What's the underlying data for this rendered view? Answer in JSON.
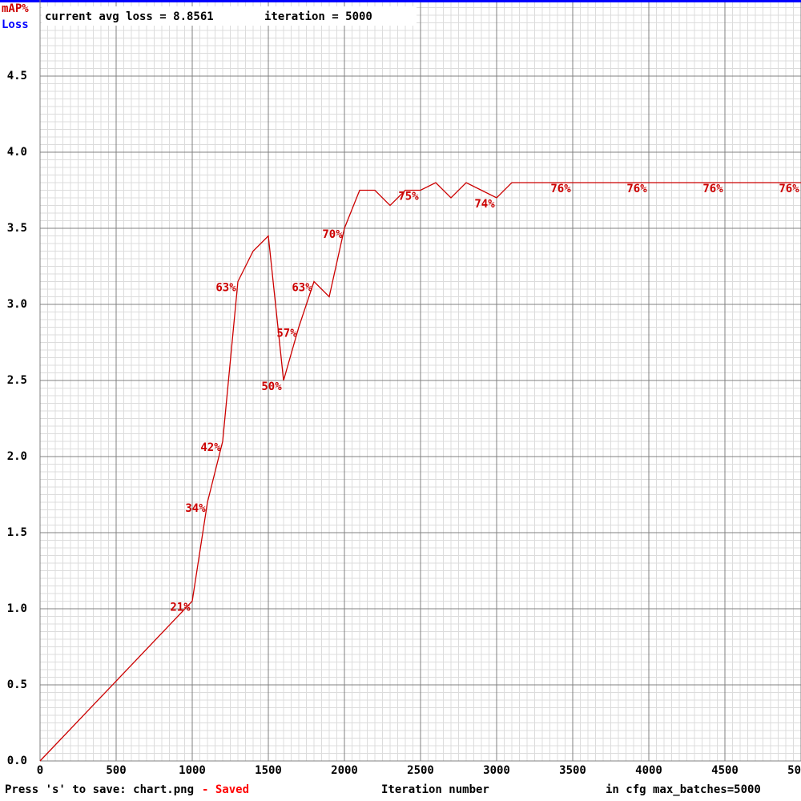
{
  "chart_data": {
    "type": "line",
    "legend": [
      "mAP%",
      "Loss"
    ],
    "status": {
      "loss": "current avg loss = 8.8561",
      "iteration": "iteration = 5000"
    },
    "footer": {
      "save": "Press 's' to save: chart.png",
      "saved": "- Saved",
      "max_batches": "in cfg max_batches=5000"
    },
    "x_label": "Iteration number",
    "xlim": [
      0,
      5000
    ],
    "xticks": [
      0,
      500,
      1000,
      1500,
      2000,
      2500,
      3000,
      3500,
      4000,
      4500,
      5000
    ],
    "ylim": [
      0,
      5
    ],
    "yticks": [
      {
        "value": 0,
        "label": "0.0"
      },
      {
        "value": 0.5,
        "label": "0.5"
      },
      {
        "value": 1,
        "label": "1.0"
      },
      {
        "value": 1.5,
        "label": "1.5"
      },
      {
        "value": 2,
        "label": "2.0"
      },
      {
        "value": 2.5,
        "label": "2.5"
      },
      {
        "value": 3,
        "label": "3.0"
      },
      {
        "value": 3.5,
        "label": "3.5"
      },
      {
        "value": 4,
        "label": "4.0"
      },
      {
        "value": 4.5,
        "label": "4.5"
      }
    ],
    "y2lim": [
      0,
      100
    ],
    "grid": true,
    "x": [
      0,
      1000,
      1100,
      1200,
      1300,
      1400,
      1500,
      1600,
      1700,
      1800,
      1900,
      2000,
      2100,
      2200,
      2300,
      2400,
      2500,
      2600,
      2700,
      2800,
      2900,
      3000,
      3100,
      3200,
      3300,
      3400,
      3500,
      3600,
      3700,
      3800,
      3900,
      4000,
      4100,
      4200,
      4300,
      4400,
      4500,
      4600,
      4700,
      4800,
      4900,
      5000
    ],
    "series": [
      {
        "name": "mAP%",
        "color": "#cc0000",
        "axis": "y2",
        "values": [
          0,
          21,
          34,
          42,
          63,
          67,
          69,
          50,
          57,
          63,
          61,
          70,
          75,
          75,
          73,
          75,
          75,
          76,
          74,
          76,
          75,
          74,
          76,
          76,
          76,
          76,
          76,
          76,
          76,
          76,
          76,
          76,
          76,
          76,
          76,
          76,
          76,
          76,
          76,
          76,
          76,
          76
        ],
        "value_labels": [
          null,
          "21%",
          "34%",
          "42%",
          "63%",
          null,
          null,
          "50%",
          "57%",
          "63%",
          null,
          "70%",
          null,
          null,
          null,
          null,
          "75%",
          null,
          null,
          null,
          null,
          "74%",
          null,
          null,
          null,
          null,
          "76%",
          null,
          null,
          null,
          null,
          "76%",
          null,
          null,
          null,
          null,
          "76%",
          null,
          null,
          null,
          null,
          "76%"
        ]
      }
    ]
  }
}
